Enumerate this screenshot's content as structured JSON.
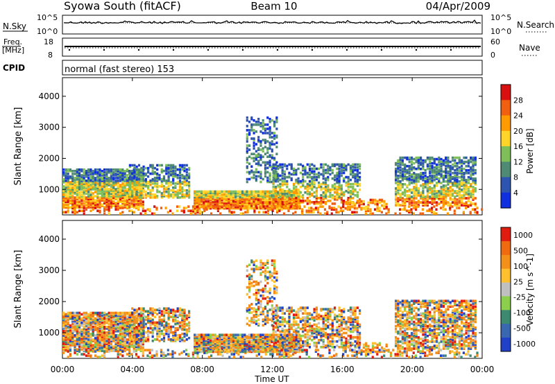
{
  "header": {
    "station": "Syowa South (fitACF)",
    "beam": "Beam 10",
    "date": "04/Apr/2009"
  },
  "noise_panel": {
    "left_label": "N.Sky",
    "left_ticks": [
      "10^5",
      "10^0"
    ],
    "right_ticks": [
      "10^5",
      "10^0"
    ],
    "right_label": "N.Search"
  },
  "freq_panel": {
    "left_label_1": "Freq.",
    "left_label_2": "[MHz]",
    "left_ticks": [
      "18",
      "8"
    ],
    "right_ticks": [
      "60",
      "0"
    ],
    "right_label": "Nave"
  },
  "cpid_panel": {
    "label": "CPID",
    "mode": "normal (fast stereo) 153"
  },
  "chart_data": [
    {
      "type": "heatmap",
      "name": "power",
      "ylabel": "Slant Range [km]",
      "yticks": [
        1000,
        2000,
        3000,
        4000
      ],
      "ylim": [
        180,
        4600
      ],
      "xlim": [
        0,
        24
      ],
      "colorbar_label": "Power [dB]",
      "colorbar_ticks": [
        "4",
        "8",
        "12",
        "16",
        "20",
        "24",
        "28"
      ],
      "colors": [
        "#1030e0",
        "#2d55b0",
        "#4f8a74",
        "#7fbf5a",
        "#ffd52a",
        "#ff9a00",
        "#f06010",
        "#d81010"
      ]
    },
    {
      "type": "heatmap",
      "name": "velocity",
      "ylabel": "Slant Range [km]",
      "yticks": [
        1000,
        2000,
        3000,
        4000
      ],
      "ylim": [
        180,
        4600
      ],
      "xlim": [
        0,
        24
      ],
      "colorbar_label": "Velocity [m s^-1]",
      "colorbar_ticks": [
        "1000",
        "500",
        "100",
        "25",
        "-25",
        "-100",
        "-500",
        "-1000"
      ],
      "colors": [
        "#2040c8",
        "#3a68b0",
        "#3e8a70",
        "#8ccf4c",
        "#c0c0c0",
        "#ffc030",
        "#f2901a",
        "#f06a10",
        "#e01c10"
      ]
    }
  ],
  "xaxis": {
    "ticks": [
      "00:00",
      "04:00",
      "08:00",
      "12:00",
      "16:00",
      "20:00",
      "00:00"
    ],
    "label": "Time UT"
  }
}
